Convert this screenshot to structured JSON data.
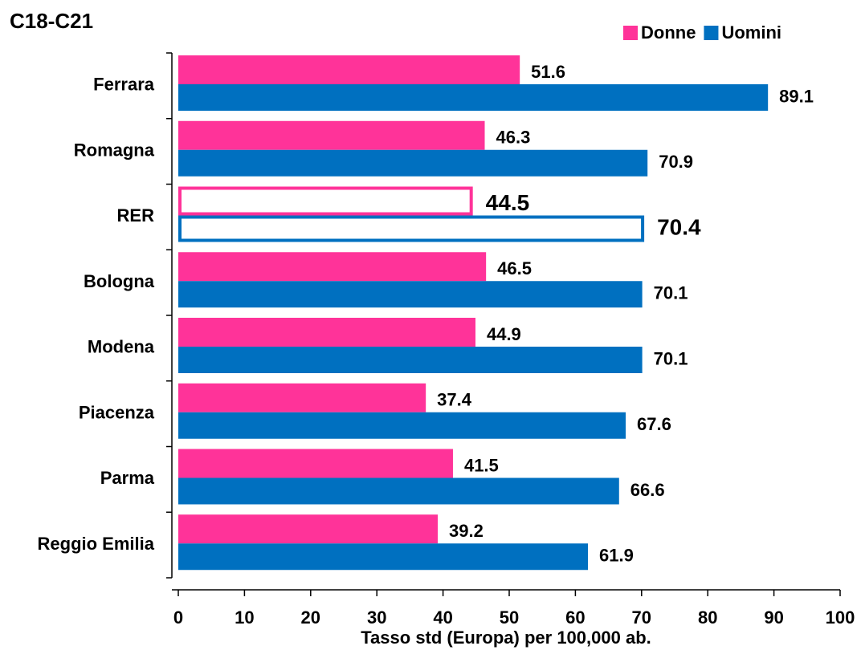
{
  "chart_data": {
    "type": "bar",
    "orientation": "horizontal",
    "title": "C18-C21",
    "x_label": "Tasso std (Europa) per 100,000 ab.",
    "categories": [
      "Ferrara",
      "Romagna",
      "RER",
      "Bologna",
      "Modena",
      "Piacenza",
      "Parma",
      "Reggio Emilia"
    ],
    "series": [
      {
        "name": "Donne",
        "color": "#ff3399",
        "values": [
          51.6,
          46.3,
          44.5,
          46.5,
          44.9,
          37.4,
          41.5,
          39.2
        ]
      },
      {
        "name": "Uomini",
        "color": "#0070c0",
        "values": [
          89.1,
          70.9,
          70.4,
          70.1,
          70.1,
          67.6,
          66.6,
          61.9
        ]
      }
    ],
    "highlight": "RER",
    "xlim": [
      0,
      100
    ],
    "xticks": [
      0,
      10,
      20,
      30,
      40,
      50,
      60,
      70,
      80,
      90,
      100
    ],
    "legend": "top-right"
  }
}
